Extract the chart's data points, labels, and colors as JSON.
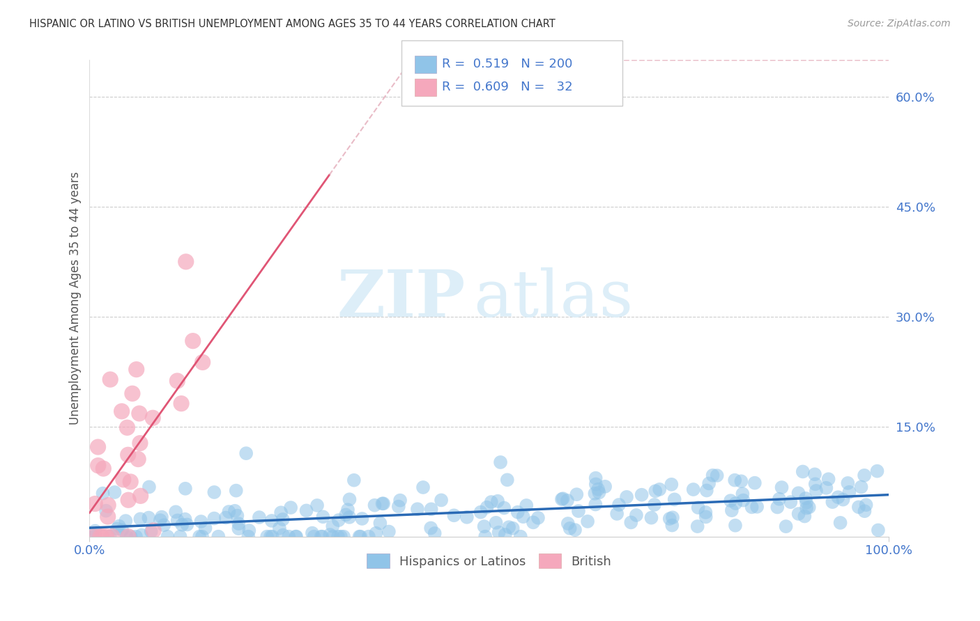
{
  "title": "HISPANIC OR LATINO VS BRITISH UNEMPLOYMENT AMONG AGES 35 TO 44 YEARS CORRELATION CHART",
  "source": "Source: ZipAtlas.com",
  "ylabel": "Unemployment Among Ages 35 to 44 years",
  "xlim": [
    0,
    1
  ],
  "ylim": [
    0,
    0.65
  ],
  "blue_color": "#90c4e8",
  "pink_color": "#f5a8bc",
  "blue_line_color": "#2a6ab5",
  "pink_line_color": "#e05575",
  "pink_dash_color": "#e0a0b0",
  "R_blue": 0.519,
  "N_blue": 200,
  "R_pink": 0.609,
  "N_pink": 32,
  "legend_label_blue": "Hispanics or Latinos",
  "legend_label_pink": "British",
  "watermark_zip": "ZIP",
  "watermark_atlas": "atlas",
  "background_color": "#ffffff",
  "grid_color": "#cccccc",
  "title_color": "#333333",
  "axis_label_color": "#555555",
  "tick_color": "#4477cc"
}
